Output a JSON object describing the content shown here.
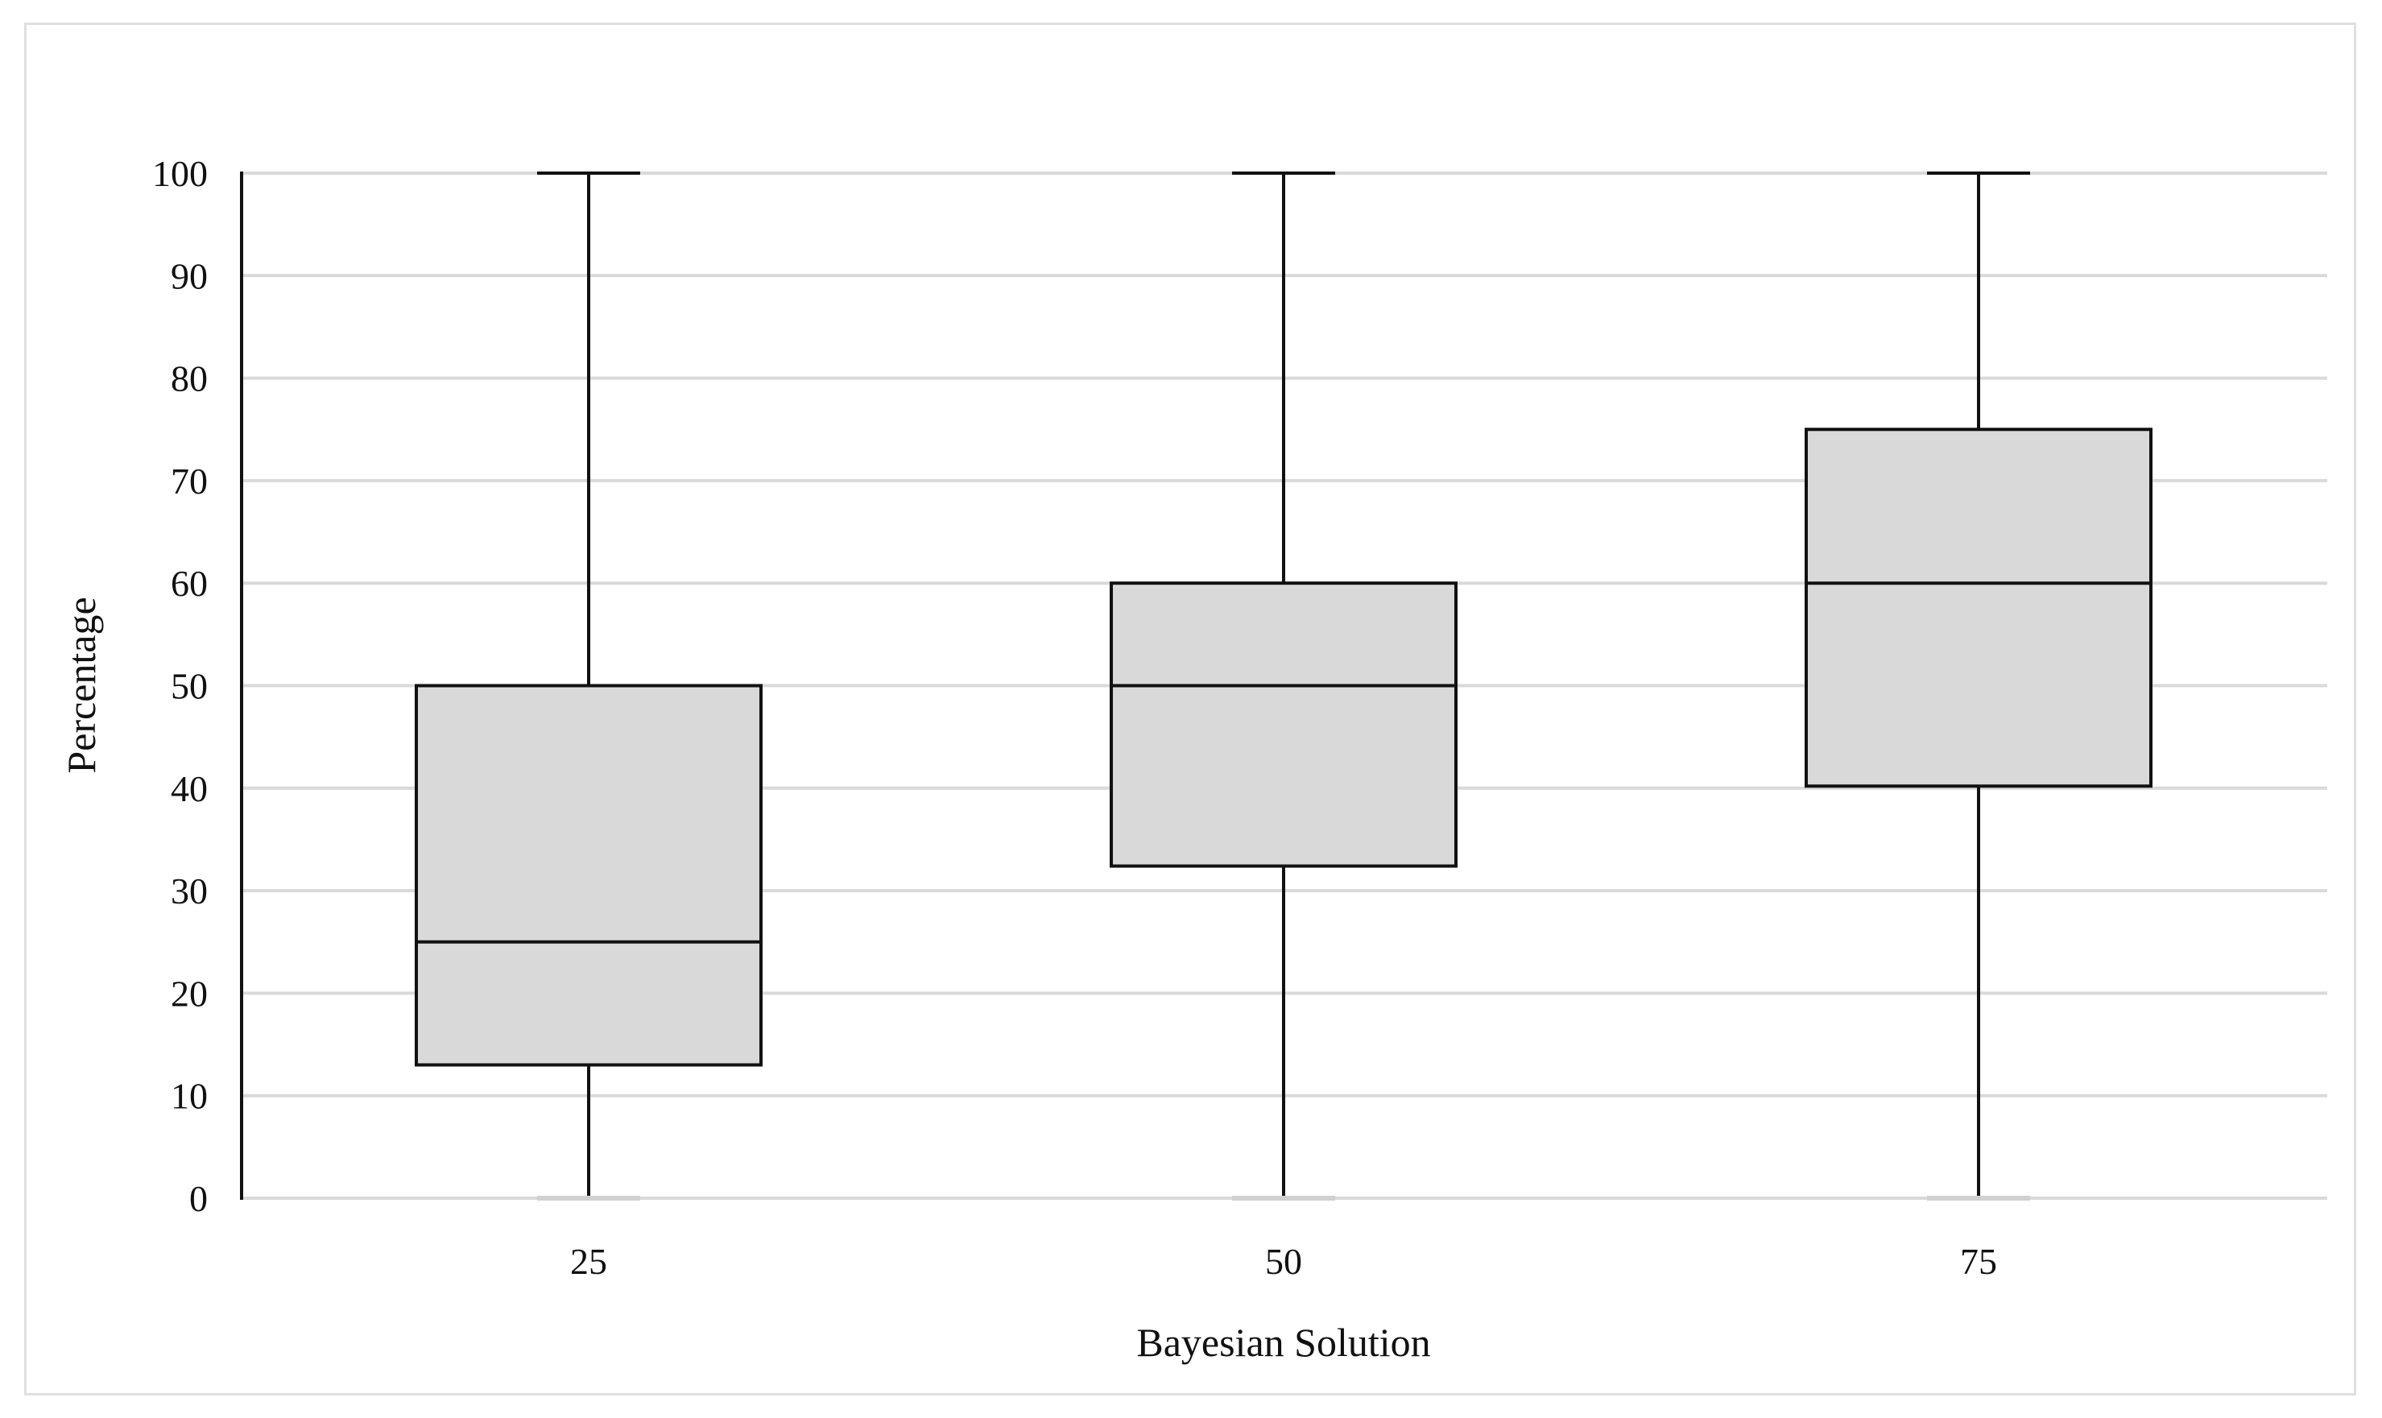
{
  "chart_data": {
    "type": "box",
    "title": "",
    "xlabel": "Bayesian Solution",
    "ylabel": "Percentage",
    "ylim": [
      0,
      100
    ],
    "yticks": [
      0,
      10,
      20,
      30,
      40,
      50,
      60,
      70,
      80,
      90,
      100
    ],
    "grid": "horizontal",
    "categories": [
      "25",
      "50",
      "75"
    ],
    "boxes": [
      {
        "category": "25",
        "min": 0,
        "q1": 13,
        "median": 25,
        "q3": 50,
        "max": 100
      },
      {
        "category": "50",
        "min": 0,
        "q1": 32.4,
        "median": 50,
        "q3": 60,
        "max": 100
      },
      {
        "category": "75",
        "min": 0,
        "q1": 40.2,
        "median": 60,
        "q3": 75,
        "max": 100
      }
    ],
    "colors": {
      "box_fill": "#d9d9d9",
      "box_stroke": "#111111",
      "grid": "#d9d9d9"
    }
  }
}
